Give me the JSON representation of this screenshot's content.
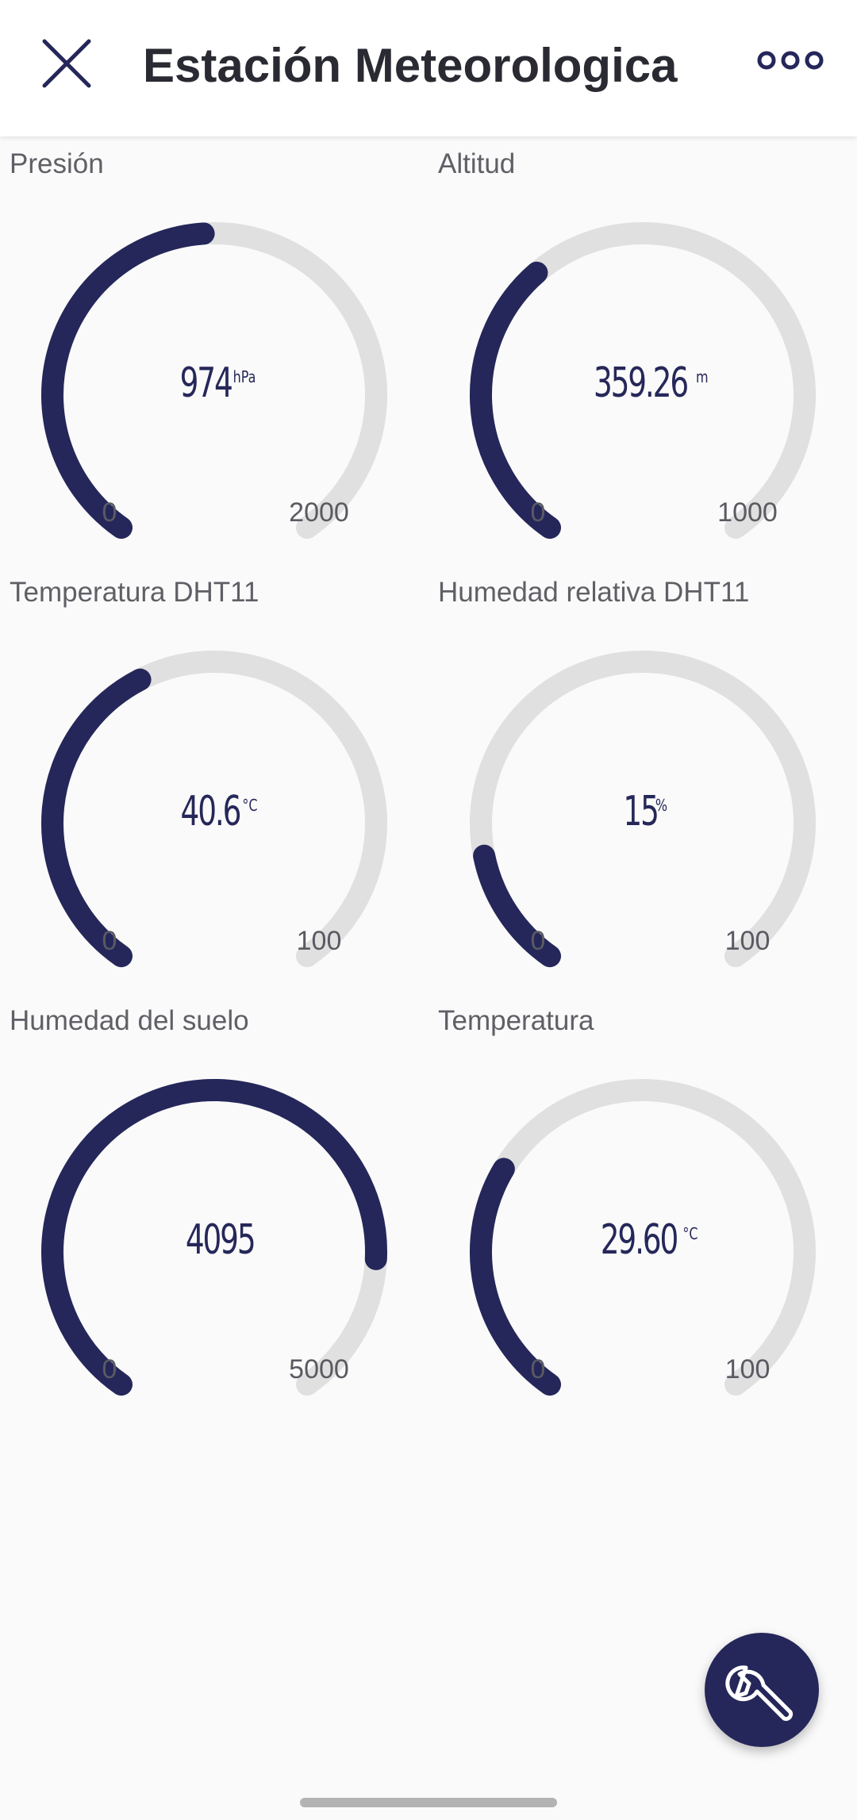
{
  "header": {
    "title": "Estación Meteorologica",
    "close_icon": "close-icon",
    "menu_icon": "more-horizontal-icon"
  },
  "colors": {
    "accent": "#25275a",
    "track": "#e0e0e0",
    "background": "#fafafa",
    "header_bg": "#ffffff"
  },
  "gauges": [
    {
      "label": "Presión",
      "value": "974",
      "unit": "hPa",
      "min": "0",
      "max": "2000",
      "fraction": 0.487
    },
    {
      "label": "Altitud",
      "value": "359.26",
      "unit": "m",
      "min": "0",
      "max": "1000",
      "fraction": 0.359
    },
    {
      "label": "Temperatura DHT11",
      "value": "40.6",
      "unit": "°C",
      "min": "0",
      "max": "100",
      "fraction": 0.406
    },
    {
      "label": "Humedad relativa DHT11",
      "value": "15",
      "unit": "%",
      "min": "0",
      "max": "100",
      "fraction": 0.15
    },
    {
      "label": "Humedad del suelo",
      "value": "4095",
      "unit": "",
      "min": "0",
      "max": "5000",
      "fraction": 0.819
    },
    {
      "label": "Temperatura",
      "value": "29.60",
      "unit": "°C",
      "min": "0",
      "max": "100",
      "fraction": 0.296
    }
  ],
  "fab": {
    "icon": "wrench-icon"
  }
}
